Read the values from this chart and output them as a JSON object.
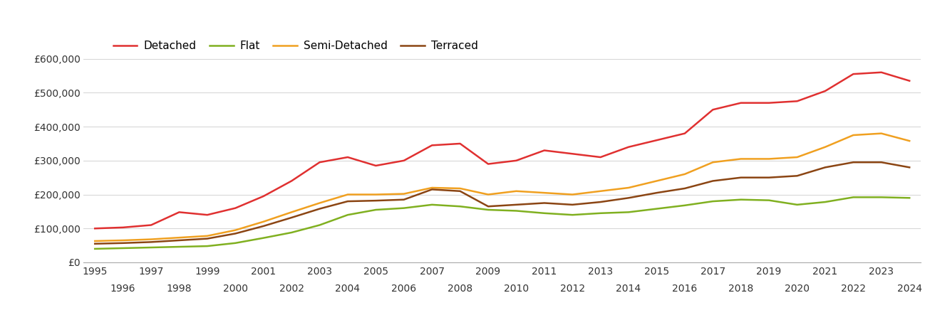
{
  "years": [
    1995,
    1996,
    1997,
    1998,
    1999,
    2000,
    2001,
    2002,
    2003,
    2004,
    2005,
    2006,
    2007,
    2008,
    2009,
    2010,
    2011,
    2012,
    2013,
    2014,
    2015,
    2016,
    2017,
    2018,
    2019,
    2020,
    2021,
    2022,
    2023,
    2024
  ],
  "detached": [
    100000,
    103000,
    110000,
    148000,
    140000,
    160000,
    195000,
    240000,
    295000,
    310000,
    285000,
    300000,
    345000,
    350000,
    290000,
    300000,
    330000,
    320000,
    310000,
    340000,
    360000,
    380000,
    450000,
    470000,
    470000,
    475000,
    505000,
    555000,
    560000,
    535000
  ],
  "flat": [
    40000,
    42000,
    44000,
    46000,
    48000,
    57000,
    72000,
    88000,
    110000,
    140000,
    155000,
    160000,
    170000,
    165000,
    155000,
    152000,
    145000,
    140000,
    145000,
    148000,
    158000,
    168000,
    180000,
    185000,
    183000,
    170000,
    178000,
    192000,
    192000,
    190000
  ],
  "semi_detached": [
    63000,
    65000,
    68000,
    73000,
    78000,
    95000,
    120000,
    148000,
    175000,
    200000,
    200000,
    202000,
    220000,
    218000,
    200000,
    210000,
    205000,
    200000,
    210000,
    220000,
    240000,
    260000,
    295000,
    305000,
    305000,
    310000,
    340000,
    375000,
    380000,
    358000
  ],
  "terraced": [
    55000,
    57000,
    60000,
    65000,
    70000,
    85000,
    107000,
    132000,
    158000,
    180000,
    182000,
    185000,
    215000,
    210000,
    165000,
    170000,
    175000,
    170000,
    178000,
    190000,
    205000,
    218000,
    240000,
    250000,
    250000,
    255000,
    280000,
    295000,
    295000,
    280000
  ],
  "colors": {
    "detached": "#e03030",
    "flat": "#80b020",
    "semi_detached": "#f0a020",
    "terraced": "#8B4513"
  },
  "legend_labels": [
    "Detached",
    "Flat",
    "Semi-Detached",
    "Terraced"
  ],
  "ylim": [
    0,
    660000
  ],
  "yticks": [
    0,
    100000,
    200000,
    300000,
    400000,
    500000,
    600000
  ],
  "xlim": [
    1994.6,
    2024.4
  ],
  "background_color": "#ffffff",
  "grid_color": "#d8d8d8",
  "line_width": 1.8
}
